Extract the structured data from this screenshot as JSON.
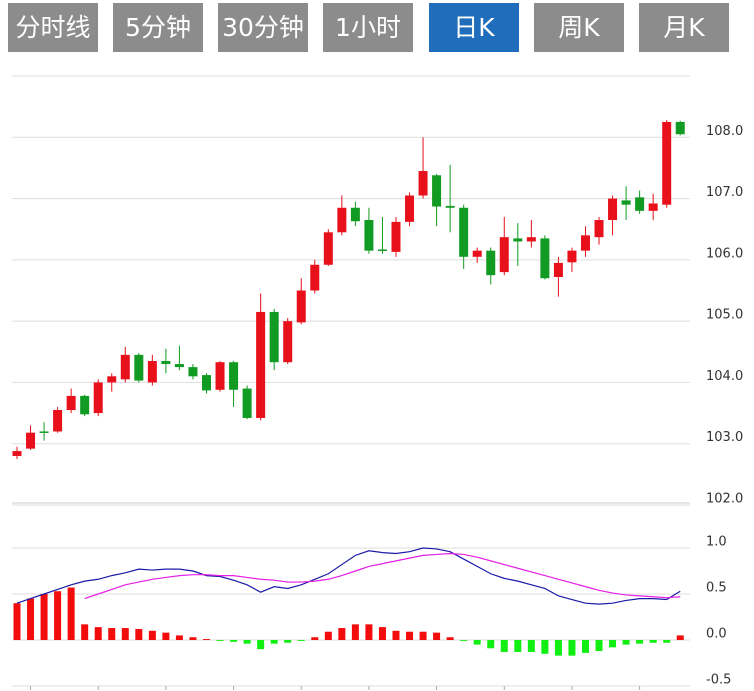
{
  "tabs": {
    "items": [
      "分时线",
      "5分钟",
      "30分钟",
      "1小时",
      "日K",
      "周K",
      "月K"
    ],
    "active": 4,
    "color": "#8c8c8c",
    "active_color": "#1f6dbb"
  },
  "chart_data": [
    {
      "type": "candlestick",
      "up_color": "#e8101a",
      "down_color": "#129b22",
      "open": [
        102.8,
        102.92,
        103.2,
        103.2,
        103.55,
        103.78,
        103.5,
        104.0,
        104.05,
        104.45,
        104.0,
        104.35,
        104.3,
        104.25,
        104.12,
        103.88,
        104.33,
        103.9,
        103.42,
        105.15,
        104.33,
        104.98,
        105.5,
        105.92,
        106.45,
        106.85,
        106.65,
        106.17,
        106.13,
        106.62,
        107.05,
        107.38,
        106.88,
        106.85,
        106.05,
        106.15,
        105.8,
        106.35,
        106.3,
        106.35,
        105.72,
        105.96,
        106.15,
        106.37,
        106.65,
        106.97,
        107.02,
        106.8,
        106.9,
        108.25
      ],
      "high": [
        102.95,
        103.3,
        103.35,
        103.6,
        103.9,
        103.8,
        104.05,
        104.15,
        104.58,
        104.48,
        104.45,
        104.55,
        104.6,
        104.3,
        104.15,
        104.35,
        104.35,
        103.95,
        105.45,
        105.2,
        105.05,
        105.7,
        106.0,
        106.5,
        107.05,
        106.95,
        106.85,
        106.7,
        106.7,
        107.1,
        108.0,
        107.4,
        107.55,
        106.9,
        106.2,
        106.2,
        106.7,
        106.6,
        106.65,
        106.4,
        106.05,
        106.2,
        106.55,
        106.7,
        107.05,
        107.2,
        107.13,
        107.08,
        108.28,
        108.27
      ],
      "low": [
        102.75,
        102.9,
        103.05,
        103.18,
        103.5,
        103.45,
        103.45,
        103.85,
        104.0,
        104.0,
        103.95,
        104.15,
        104.2,
        104.05,
        103.82,
        103.85,
        103.6,
        103.4,
        103.38,
        104.2,
        104.3,
        104.95,
        105.45,
        105.9,
        106.4,
        106.55,
        106.1,
        106.1,
        106.05,
        106.55,
        107.0,
        106.55,
        106.45,
        105.85,
        105.95,
        105.6,
        105.75,
        105.9,
        106.2,
        105.68,
        105.4,
        105.8,
        106.05,
        106.25,
        106.4,
        106.65,
        106.75,
        106.65,
        106.85,
        108.03
      ],
      "close": [
        102.88,
        103.18,
        103.18,
        103.55,
        103.78,
        103.48,
        104.0,
        104.1,
        104.45,
        104.03,
        104.35,
        104.3,
        104.25,
        104.1,
        103.87,
        104.33,
        103.88,
        103.42,
        105.15,
        104.33,
        105.0,
        105.5,
        105.92,
        106.45,
        106.85,
        106.63,
        106.15,
        106.15,
        106.62,
        107.05,
        107.45,
        106.87,
        106.85,
        106.05,
        106.15,
        105.75,
        106.37,
        106.3,
        106.37,
        105.7,
        105.95,
        106.15,
        106.4,
        106.65,
        107.0,
        106.9,
        106.8,
        106.92,
        108.25,
        108.05
      ],
      "ylim": [
        102,
        109
      ],
      "yticks": [
        {
          "value": 102,
          "label": "102.0"
        },
        {
          "value": 103,
          "label": "103.0"
        },
        {
          "value": 104,
          "label": "104.0"
        },
        {
          "value": 105,
          "label": "105.0"
        },
        {
          "value": 106,
          "label": "106.0"
        },
        {
          "value": 107,
          "label": "107.0"
        },
        {
          "value": 108,
          "label": "108.0"
        }
      ],
      "grid": true
    },
    {
      "type": "macd",
      "pos_color": "#f20c0c",
      "neg_color": "#11ee11",
      "values": [
        0.4,
        0.45,
        0.5,
        0.53,
        0.57,
        0.17,
        0.14,
        0.13,
        0.13,
        0.12,
        0.1,
        0.08,
        0.05,
        0.03,
        0.01,
        -0.01,
        -0.02,
        -0.04,
        -0.1,
        -0.04,
        -0.03,
        -0.01,
        0.03,
        0.09,
        0.13,
        0.17,
        0.17,
        0.14,
        0.1,
        0.09,
        0.09,
        0.08,
        0.03,
        -0.01,
        -0.05,
        -0.09,
        -0.13,
        -0.13,
        -0.13,
        -0.15,
        -0.17,
        -0.17,
        -0.14,
        -0.12,
        -0.08,
        -0.05,
        -0.04,
        -0.03,
        -0.03,
        0.05
      ],
      "series": [
        {
          "color": "#1a1aa6",
          "values": [
            0.4,
            0.45,
            0.5,
            0.55,
            0.6,
            0.64,
            0.66,
            0.7,
            0.73,
            0.77,
            0.76,
            0.77,
            0.77,
            0.75,
            0.7,
            0.69,
            0.65,
            0.6,
            0.52,
            0.58,
            0.56,
            0.6,
            0.66,
            0.72,
            0.82,
            0.92,
            0.97,
            0.95,
            0.94,
            0.96,
            1.0,
            0.99,
            0.96,
            0.88,
            0.8,
            0.72,
            0.67,
            0.64,
            0.6,
            0.56,
            0.48,
            0.44,
            0.4,
            0.39,
            0.4,
            0.43,
            0.45,
            0.45,
            0.44,
            0.53
          ]
        },
        {
          "color": "#e61ee6",
          "values": [
            null,
            null,
            null,
            null,
            null,
            0.45,
            0.5,
            0.55,
            0.6,
            0.63,
            0.66,
            0.68,
            0.7,
            0.71,
            0.71,
            0.7,
            0.7,
            0.68,
            0.66,
            0.65,
            0.63,
            0.63,
            0.64,
            0.66,
            0.7,
            0.75,
            0.8,
            0.83,
            0.86,
            0.89,
            0.92,
            0.93,
            0.94,
            0.93,
            0.9,
            0.86,
            0.82,
            0.78,
            0.74,
            0.7,
            0.66,
            0.62,
            0.58,
            0.54,
            0.51,
            0.49,
            0.48,
            0.47,
            0.46,
            0.47
          ]
        }
      ],
      "ylim": [
        -0.5,
        1.0
      ],
      "yticks": [
        {
          "value": -0.5,
          "label": "-0.5"
        },
        {
          "value": 0,
          "label": "0.0"
        },
        {
          "value": 0.5,
          "label": "0.5"
        },
        {
          "value": 1.0,
          "label": "1.0"
        }
      ],
      "grid": true
    }
  ]
}
